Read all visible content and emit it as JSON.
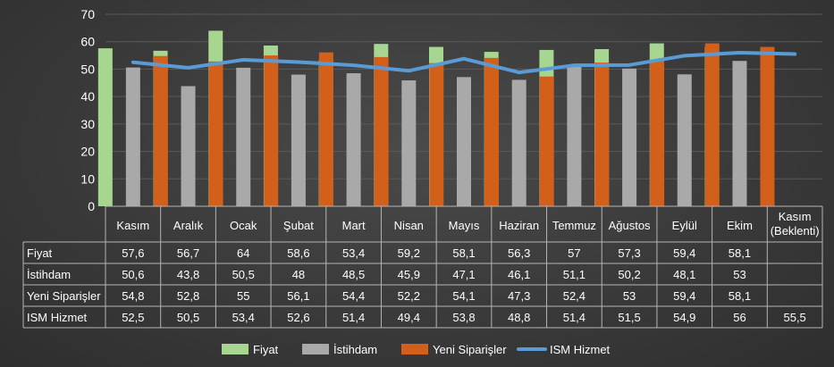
{
  "chart_data": {
    "type": "bar",
    "categories": [
      "Kasım",
      "Aralık",
      "Ocak",
      "Şubat",
      "Mart",
      "Nisan",
      "Mayıs",
      "Haziran",
      "Temmuz",
      "Ağustos",
      "Eylül",
      "Ekim",
      "Kasım\n(Beklenti)"
    ],
    "series": [
      {
        "name": "Fiyat",
        "type": "bar",
        "color": "#a6d68f",
        "values": [
          57.6,
          56.7,
          64,
          58.6,
          53.4,
          59.2,
          58.1,
          56.3,
          57,
          57.3,
          59.4,
          58.1,
          null
        ],
        "labels": [
          "57,6",
          "56,7",
          "64",
          "58,6",
          "53,4",
          "59,2",
          "58,1",
          "56,3",
          "57",
          "57,3",
          "59,4",
          "58,1",
          ""
        ]
      },
      {
        "name": "İstihdam",
        "type": "bar",
        "color": "#a9a9a9",
        "values": [
          50.6,
          43.8,
          50.5,
          48,
          48.5,
          45.9,
          47.1,
          46.1,
          51.1,
          50.2,
          48.1,
          53,
          null
        ],
        "labels": [
          "50,6",
          "43,8",
          "50,5",
          "48",
          "48,5",
          "45,9",
          "47,1",
          "46,1",
          "51,1",
          "50,2",
          "48,1",
          "53",
          ""
        ]
      },
      {
        "name": "Yeni Siparişler",
        "type": "bar",
        "color": "#d2601a",
        "values": [
          54.8,
          52.8,
          55,
          56.1,
          54.4,
          52.2,
          54.1,
          47.3,
          52.4,
          53,
          59.4,
          58.1,
          null
        ],
        "labels": [
          "54,8",
          "52,8",
          "55",
          "56,1",
          "54,4",
          "52,2",
          "54,1",
          "47,3",
          "52,4",
          "53",
          "59,4",
          "58,1",
          ""
        ]
      },
      {
        "name": "ISM Hizmet",
        "type": "line",
        "color": "#5b9bd5",
        "values": [
          52.5,
          50.5,
          53.4,
          52.6,
          51.4,
          49.4,
          53.8,
          48.8,
          51.4,
          51.5,
          54.9,
          56,
          55.5
        ],
        "labels": [
          "52,5",
          "50,5",
          "53,4",
          "52,6",
          "51,4",
          "49,4",
          "53,8",
          "48,8",
          "51,4",
          "51,5",
          "54,9",
          "56",
          "55,5"
        ]
      }
    ],
    "ylim": [
      0,
      70
    ],
    "yticks": [
      "0",
      "10",
      "20",
      "30",
      "40",
      "50",
      "60",
      "70"
    ],
    "grid": true,
    "legend_position": "bottom",
    "data_table": true
  }
}
